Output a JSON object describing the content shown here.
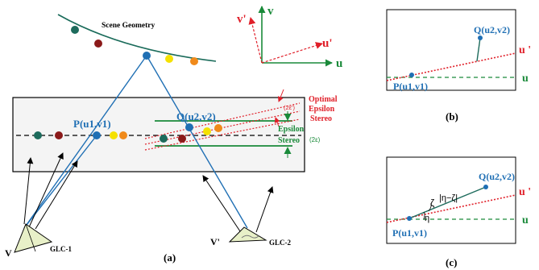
{
  "colors": {
    "blue": "#1f6fb4",
    "red": "#e0202a",
    "green": "#1a8a3a",
    "dark_red": "#8b1a1a",
    "teal": "#1d6b5c",
    "yellow": "#f5e100",
    "orange": "#f08a1a",
    "frame_fill": "#f4f4f4",
    "pyramid_fill": "#e8f0c8"
  },
  "panel_a": {
    "scene_geometry": "Scene Geometry",
    "point_p": "P(u1,v1)",
    "point_q": "Q(u2,v2)",
    "optimal_epsilon_stereo": [
      "Optimal",
      "Epsilon",
      "Stereo"
    ],
    "two_eps_prime": "(2ε')",
    "epsilon_stereo": [
      "Epsilon",
      "Stereo"
    ],
    "two_eps": "(2ε)",
    "axis_v_prime": "v'",
    "axis_v": "v",
    "axis_u_prime": "u'",
    "axis_u": "u",
    "camera_v": "V",
    "camera_v_prime": "V'",
    "glc1": "GLC-1",
    "glc2": "GLC-2",
    "caption": "(a)"
  },
  "panel_b": {
    "point_q": "Q(u2,v2)",
    "point_p": "P(u1,v1)",
    "axis_u_prime": "u '",
    "axis_u": "u",
    "caption": "(b)"
  },
  "panel_c": {
    "point_q": "Q(u2,v2)",
    "point_p": "P(u1,v1)",
    "zeta": "ζ",
    "eta_minus_zeta": "|η−ζ|",
    "eta": "η",
    "axis_u_prime": "u '",
    "axis_u": "u",
    "caption": "(c)"
  }
}
